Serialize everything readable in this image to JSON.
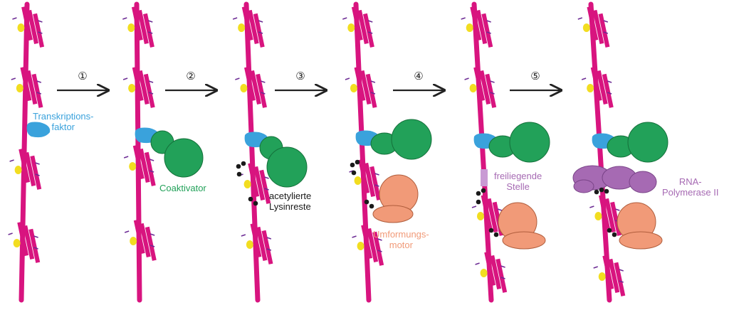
{
  "colors": {
    "chromatin": "#d8147f",
    "histone_accent": "#f2dd20",
    "histone_tail": "#6c2b94",
    "transcription_factor": "#3aa2dc",
    "coactivator": "#22a159",
    "remodeler": "#f19a78",
    "polymerase": "#a66ab3",
    "acetyl": "#1a1a1a",
    "arrow": "#222222"
  },
  "steps": [
    "①",
    "②",
    "③",
    "④",
    "⑤"
  ],
  "labels": {
    "tf_line1": "Transkriptions-",
    "tf_line2": "faktor",
    "coactivator": "Coaktivator",
    "acetyl_line1": "acetylierte",
    "acetyl_line2": "Lysinreste",
    "remodeler_line1": "Umformungs-",
    "remodeler_line2": "motor",
    "exposed_line1": "freiliegende",
    "exposed_line2": "Stelle",
    "pol_line1": "RNA-",
    "pol_line2": "Polymerase II"
  }
}
